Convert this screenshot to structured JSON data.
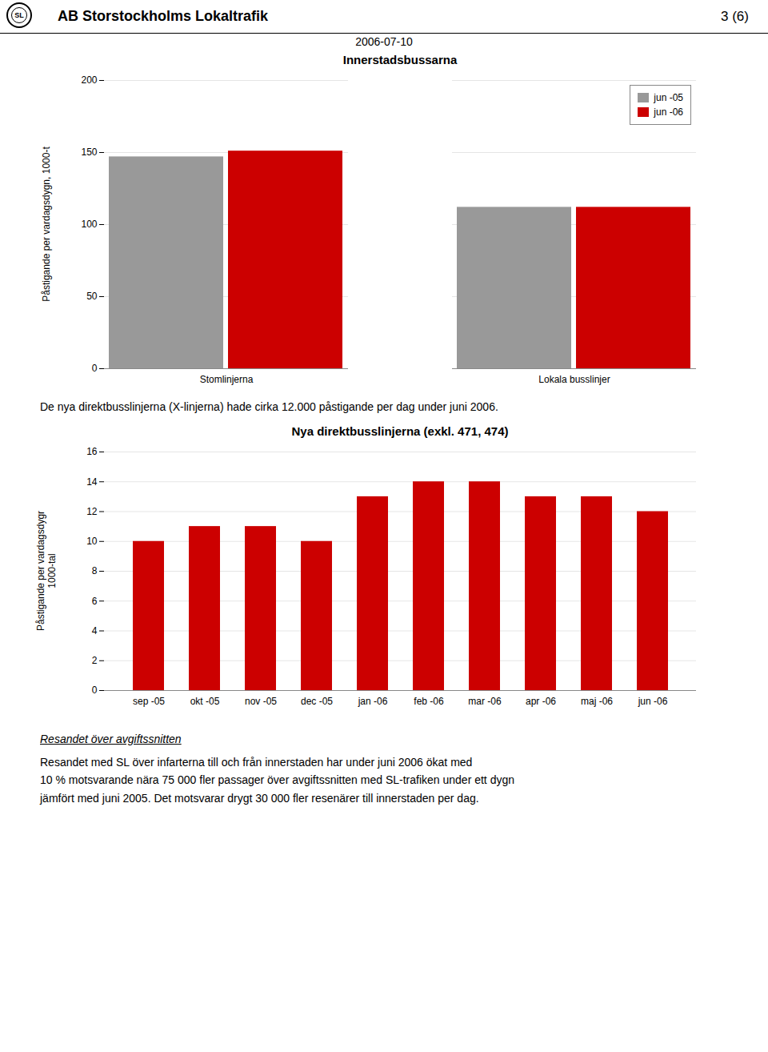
{
  "header_title": "AB Storstockholms Lokaltrafik",
  "page_num": "3 (6)",
  "logo_text": "SL",
  "date": "2006-07-10",
  "mid_text": "De nya direktbusslinjerna (X-linjerna) hade cirka 12.000 påstigande per dag under juni 2006.",
  "footer_title": "Resandet över avgiftssnitten",
  "footer_text": "Resandet med SL över infarterna till och från innerstaden har under juni 2006 ökat med\n10 % motsvarande nära 75 000 fler passager över avgiftssnitten med SL-trafiken under ett dygn\njämfört med juni 2005. Det motsvarar drygt 30 000 fler resenärer till innerstaden per dag.",
  "chart_data": [
    {
      "type": "bar",
      "title": "Innerstadsbussarna",
      "ylabel": "Påstigande per vardagsdygn, 1000-t",
      "categories": [
        "Stomlinjerna",
        "Lokala busslinjer"
      ],
      "series": [
        {
          "name": "jun -05",
          "color": "#999999",
          "values": [
            147,
            112
          ]
        },
        {
          "name": "jun -06",
          "color": "#cc0000",
          "values": [
            151,
            112
          ]
        }
      ],
      "ylim": [
        0,
        200
      ],
      "yticks": [
        0,
        50,
        100,
        150,
        200
      ],
      "grid": true,
      "legend": "upper right"
    },
    {
      "type": "bar",
      "title": "Nya direktbusslinjerna (exkl. 471, 474)",
      "ylabel": "Påstigande per vardagsdygr\n1000-tal",
      "categories": [
        "sep -05",
        "okt -05",
        "nov -05",
        "dec -05",
        "jan -06",
        "feb -06",
        "mar -06",
        "apr -06",
        "maj -06",
        "jun -06"
      ],
      "values": [
        10,
        11,
        11,
        10,
        13,
        14,
        14,
        13,
        13,
        12
      ],
      "color": "#cc0000",
      "ylim": [
        0,
        16
      ],
      "yticks": [
        0,
        2,
        4,
        6,
        8,
        10,
        12,
        14,
        16
      ],
      "grid": true
    }
  ]
}
